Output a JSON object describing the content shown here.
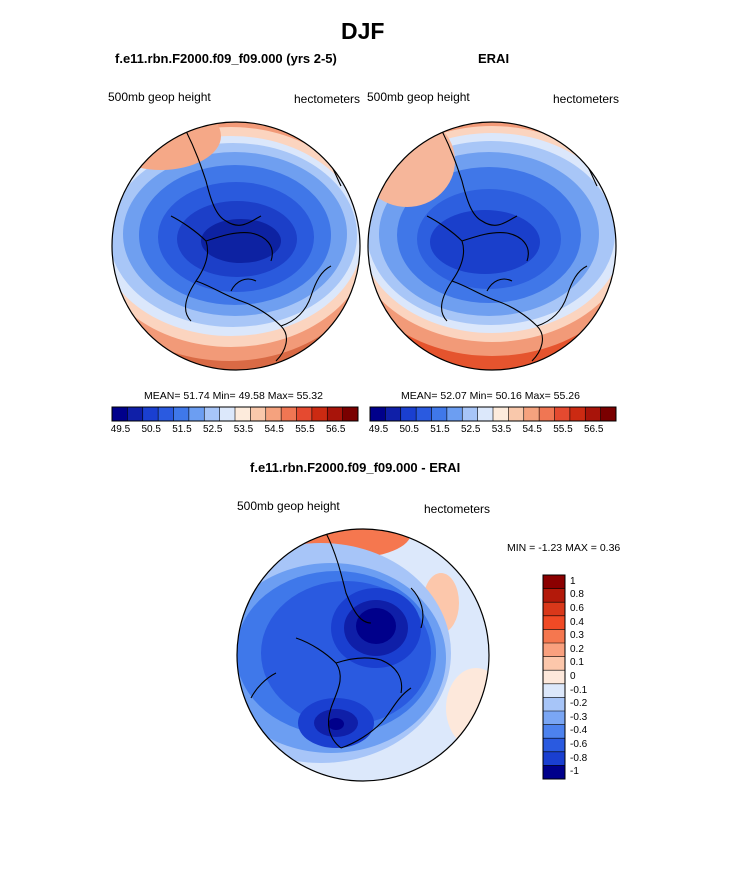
{
  "figure": {
    "title": "DJF",
    "colors": {
      "fill_scale": [
        "#00008b",
        "#0f1fa8",
        "#1a3fd0",
        "#2a5ae0",
        "#3f78ea",
        "#6c9ef2",
        "#a7c5f8",
        "#dce8fb",
        "#fdebdc",
        "#f9c8ab",
        "#f5a27e",
        "#f07653",
        "#e54a30",
        "#cc2a12",
        "#a8140a",
        "#7a0000"
      ]
    }
  },
  "panel_model": {
    "title": "f.e11.rbn.F2000.f09_f09.000 (yrs 2-5)",
    "left_label": "500mb geop height",
    "right_label": "hectometers",
    "stats": {
      "mean_label": "MEAN=",
      "mean": "51.74",
      "min_label": "Min=",
      "min": "49.58",
      "max_label": "Max=",
      "max": "55.32"
    }
  },
  "panel_obs": {
    "title": "ERAI",
    "left_label": "500mb geop height",
    "right_label": "hectometers",
    "stats": {
      "mean_label": "MEAN=",
      "mean": "52.07",
      "min_label": "Min=",
      "min": "50.16",
      "max_label": "Max=",
      "max": "55.26"
    }
  },
  "colorbar_top": {
    "tick_labels": [
      "49.5",
      "50.5",
      "51.5",
      "52.5",
      "53.5",
      "54.5",
      "55.5",
      "56.5"
    ]
  },
  "panel_diff": {
    "title": "f.e11.rbn.F2000.f09_f09.000 - ERAI",
    "left_label": "500mb geop height",
    "right_label": "hectometers",
    "stats": {
      "min_label": "MIN =",
      "min": "-1.23",
      "max_label": "MAX =",
      "max": "0.36"
    },
    "colorbar": {
      "tick_labels": [
        "1",
        "0.8",
        "0.6",
        "0.4",
        "0.3",
        "0.2",
        "0.1",
        "0",
        "-0.1",
        "-0.2",
        "-0.3",
        "-0.4",
        "-0.6",
        "-0.8",
        "-1"
      ],
      "colors": [
        "#8b0000",
        "#b3190a",
        "#d9381a",
        "#f04a25",
        "#f5774f",
        "#f9a07e",
        "#fcc7ab",
        "#fde8db",
        "#dce8fb",
        "#a7c5f8",
        "#7aa6f4",
        "#4d82ee",
        "#2a5ae0",
        "#1a3fd0",
        "#00008b"
      ]
    }
  }
}
